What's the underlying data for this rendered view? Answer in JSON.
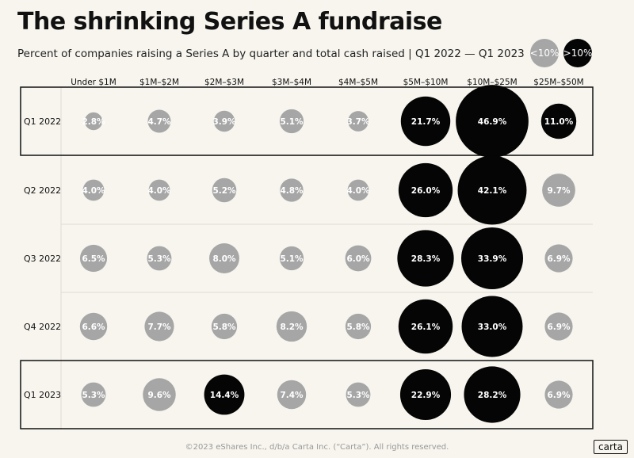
{
  "chart_data": {
    "type": "bubble",
    "title": "The shrinking Series A fundraise",
    "subtitle": "Percent of companies raising a Series A by quarter and total cash raised | Q1 2022 — Q1 2023",
    "categories": [
      "Under $1M",
      "$1M–$2M",
      "$2M–$3M",
      "$3M–$4M",
      "$4M–$5M",
      "$5M–$10M",
      "$10M–$25M",
      "$25M–$50M"
    ],
    "rows": [
      {
        "name": "Q1 2022",
        "values": [
          2.8,
          4.7,
          3.9,
          5.1,
          3.7,
          21.7,
          46.9,
          11.0
        ],
        "labels": [
          "2.8%",
          "4.7%",
          "3.9%",
          "5.1%",
          "3.7%",
          "21.7%",
          "46.9%",
          "11.0%"
        ],
        "highlighted": true
      },
      {
        "name": "Q2 2022",
        "values": [
          4.0,
          4.0,
          5.2,
          4.8,
          4.0,
          26.0,
          42.1,
          9.7
        ],
        "labels": [
          "4.0%",
          "4.0%",
          "5.2%",
          "4.8%",
          "4.0%",
          "26.0%",
          "42.1%",
          "9.7%"
        ],
        "highlighted": false
      },
      {
        "name": "Q3 2022",
        "values": [
          6.5,
          5.3,
          8.0,
          5.1,
          6.0,
          28.3,
          33.9,
          6.9
        ],
        "labels": [
          "6.5%",
          "5.3%",
          "8.0%",
          "5.1%",
          "6.0%",
          "28.3%",
          "33.9%",
          "6.9%"
        ],
        "highlighted": false
      },
      {
        "name": "Q4 2022",
        "values": [
          6.6,
          7.7,
          5.8,
          8.2,
          5.8,
          26.1,
          33.0,
          6.9
        ],
        "labels": [
          "6.6%",
          "7.7%",
          "5.8%",
          "8.2%",
          "5.8%",
          "26.1%",
          "33.0%",
          "6.9%"
        ],
        "highlighted": false
      },
      {
        "name": "Q1 2023",
        "values": [
          5.3,
          9.6,
          14.4,
          7.4,
          5.3,
          22.9,
          28.2,
          6.9
        ],
        "labels": [
          "5.3%",
          "9.6%",
          "14.4%",
          "7.4%",
          "5.3%",
          "22.9%",
          "28.2%",
          "6.9%"
        ],
        "highlighted": true
      }
    ],
    "threshold": 10,
    "legend": [
      {
        "label": "<10%",
        "color": "#a6a6a6"
      },
      {
        "label": ">10%",
        "color": "#050505"
      }
    ],
    "legend_position": "top-right",
    "grid": true
  },
  "colors": {
    "low": "#a6a6a6",
    "high": "#050505",
    "background": "#f7f5ee",
    "gridline": "#dcdad2"
  },
  "footer": {
    "text": "©2023 eShares Inc., d/b/a Carta Inc. (“Carta”). All rights reserved.",
    "brand": "carta"
  }
}
